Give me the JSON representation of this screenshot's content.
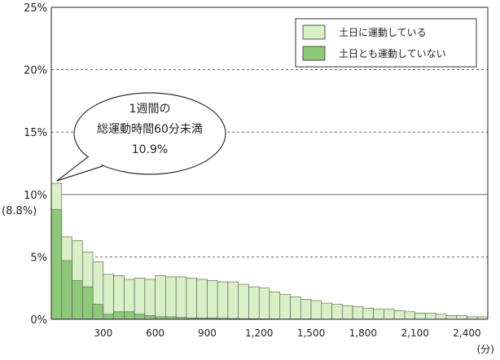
{
  "chart_data": {
    "type": "bar",
    "x_unit": "(分)",
    "xlim": [
      0,
      2520
    ],
    "ylim": [
      0,
      25
    ],
    "bin_width": 60,
    "y_ticks": [
      "0%",
      "5%",
      "10%",
      "15%",
      "20%",
      "25%"
    ],
    "x_ticks": [
      "300",
      "600",
      "900",
      "1,200",
      "1,500",
      "1,800",
      "2,100",
      "2,400"
    ],
    "grid": "horizontal dashed at 5,15,20; solid at 10",
    "legend_position": "top-right",
    "series": [
      {
        "name": "土日に運動している",
        "color": "#d9efc6",
        "values": [
          10.9,
          6.6,
          6.3,
          5.4,
          4.6,
          3.6,
          3.5,
          3.2,
          3.3,
          3.2,
          3.5,
          3.4,
          3.4,
          3.3,
          3.2,
          3.1,
          3.0,
          3.0,
          2.8,
          2.6,
          2.5,
          2.2,
          2.0,
          1.8,
          1.6,
          1.5,
          1.3,
          1.2,
          1.1,
          1.0,
          0.9,
          0.8,
          0.8,
          0.7,
          0.6,
          0.5,
          0.5,
          0.4,
          0.3,
          0.3,
          0.2,
          0.2
        ]
      },
      {
        "name": "土日とも運動していない",
        "color": "#8ec97a",
        "values": [
          8.8,
          4.7,
          3.1,
          2.6,
          1.2,
          0.4,
          0.6,
          0.6,
          0.4,
          0.3,
          0.2,
          0.2,
          0.15,
          0.1,
          0.1,
          0.1,
          0.08,
          0.06,
          0.05,
          0.05,
          0.04,
          0.03,
          0.02,
          0.02,
          0.02,
          0.01,
          0.01,
          0.01,
          0.01,
          0.01,
          0,
          0,
          0,
          0,
          0,
          0,
          0,
          0,
          0,
          0,
          0,
          0
        ]
      }
    ],
    "annotations": {
      "highlight_label": "(8.8%)",
      "callout": {
        "line1": "1週間の",
        "line2": "総運動時間60分未満",
        "line3": "10.9%"
      }
    }
  }
}
